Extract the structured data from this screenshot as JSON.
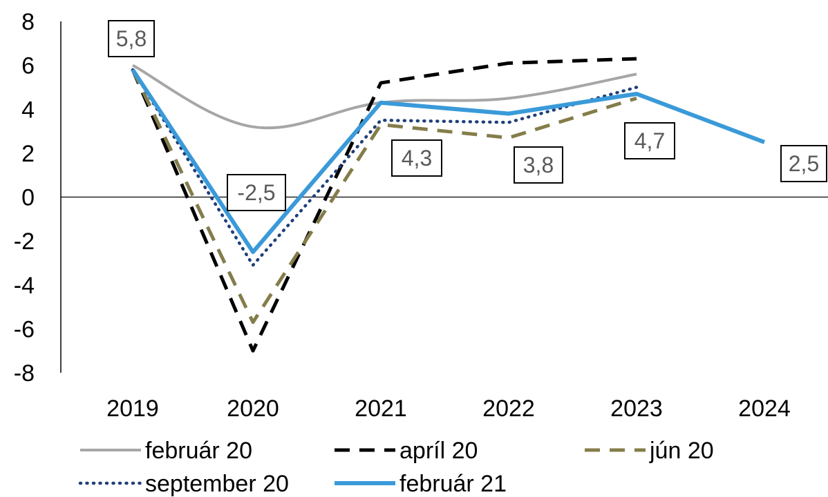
{
  "chart_data": {
    "type": "line",
    "categories": [
      "2019",
      "2020",
      "2021",
      "2022",
      "2023",
      "2024"
    ],
    "ylim": [
      -8,
      8
    ],
    "yticks": [
      8,
      6,
      4,
      2,
      0,
      -2,
      -4,
      -6,
      -8
    ],
    "grid": false,
    "legend_position": "bottom",
    "series": [
      {
        "name": "február 20",
        "values": [
          6.0,
          3.2,
          4.3,
          4.5,
          5.6,
          null
        ],
        "color": "#A6A6A6",
        "style": "solid"
      },
      {
        "name": "apríl 20",
        "values": [
          5.8,
          -7.0,
          5.2,
          6.1,
          6.3,
          null
        ],
        "color": "#000000",
        "style": "dash"
      },
      {
        "name": "jún 20",
        "values": [
          5.8,
          -5.7,
          3.3,
          2.7,
          4.5,
          null
        ],
        "color": "#847D4A",
        "style": "dash"
      },
      {
        "name": "september 20",
        "values": [
          5.8,
          -3.1,
          3.5,
          3.4,
          5.0,
          null
        ],
        "color": "#1F3F7A",
        "style": "dot"
      },
      {
        "name": "február 21",
        "values": [
          5.8,
          -2.5,
          4.3,
          3.8,
          4.7,
          2.5
        ],
        "color": "#3A9AD9",
        "style": "solid"
      }
    ],
    "data_labels": [
      "5,8",
      "-2,5",
      "4,3",
      "3,8",
      "4,7",
      "2,5"
    ]
  }
}
